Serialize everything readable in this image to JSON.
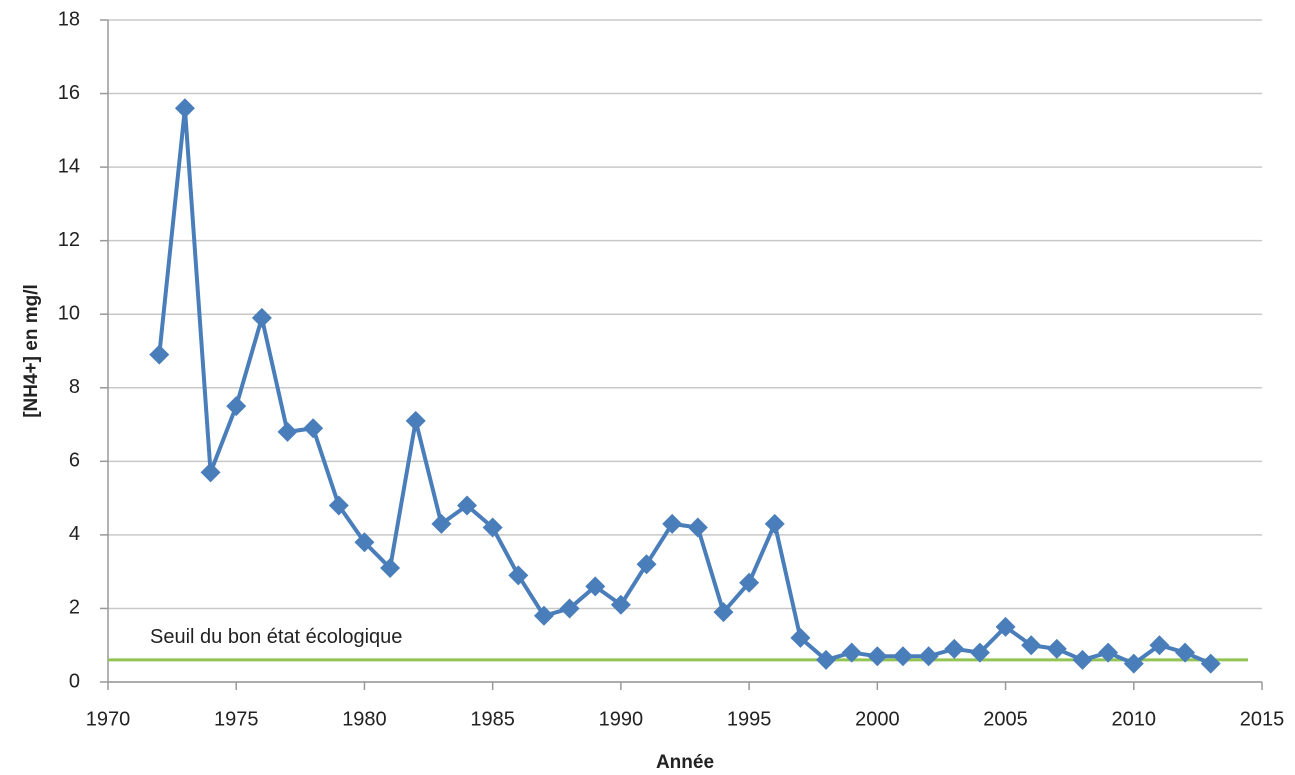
{
  "chart_data": {
    "type": "line",
    "x_label": "Année",
    "y_label": "[NH4+] en mg/l",
    "x": [
      1972,
      1973,
      1974,
      1975,
      1976,
      1977,
      1978,
      1979,
      1980,
      1981,
      1982,
      1983,
      1984,
      1985,
      1986,
      1987,
      1988,
      1989,
      1990,
      1991,
      1992,
      1993,
      1994,
      1995,
      1996,
      1997,
      1998,
      1999,
      2000,
      2001,
      2002,
      2003,
      2004,
      2005,
      2006,
      2007,
      2008,
      2009,
      2010,
      2011,
      2012,
      2013
    ],
    "series": [
      {
        "name": null,
        "color": "#4a7ebb",
        "values": [
          8.9,
          15.6,
          5.7,
          7.5,
          9.9,
          6.8,
          6.9,
          4.8,
          3.8,
          3.1,
          7.1,
          4.3,
          4.8,
          4.2,
          2.9,
          1.8,
          2.0,
          2.6,
          2.1,
          3.2,
          4.3,
          4.2,
          1.9,
          2.7,
          4.3,
          1.2,
          0.6,
          0.8,
          0.7,
          0.7,
          0.7,
          0.9,
          0.8,
          1.5,
          1.0,
          0.9,
          0.6,
          0.8,
          0.5,
          1.0,
          0.8,
          0.5
        ]
      }
    ],
    "threshold": {
      "label": "Seuil du bon état écologique",
      "value": 0.6,
      "color": "#92c353"
    },
    "xlim": [
      1970,
      2015
    ],
    "xticks": [
      1970,
      1975,
      1980,
      1985,
      1990,
      1995,
      2000,
      2005,
      2010,
      2015
    ],
    "ylim": [
      0,
      18
    ],
    "yticks": [
      0,
      2,
      4,
      6,
      8,
      10,
      12,
      14,
      16,
      18
    ],
    "grid": true
  }
}
